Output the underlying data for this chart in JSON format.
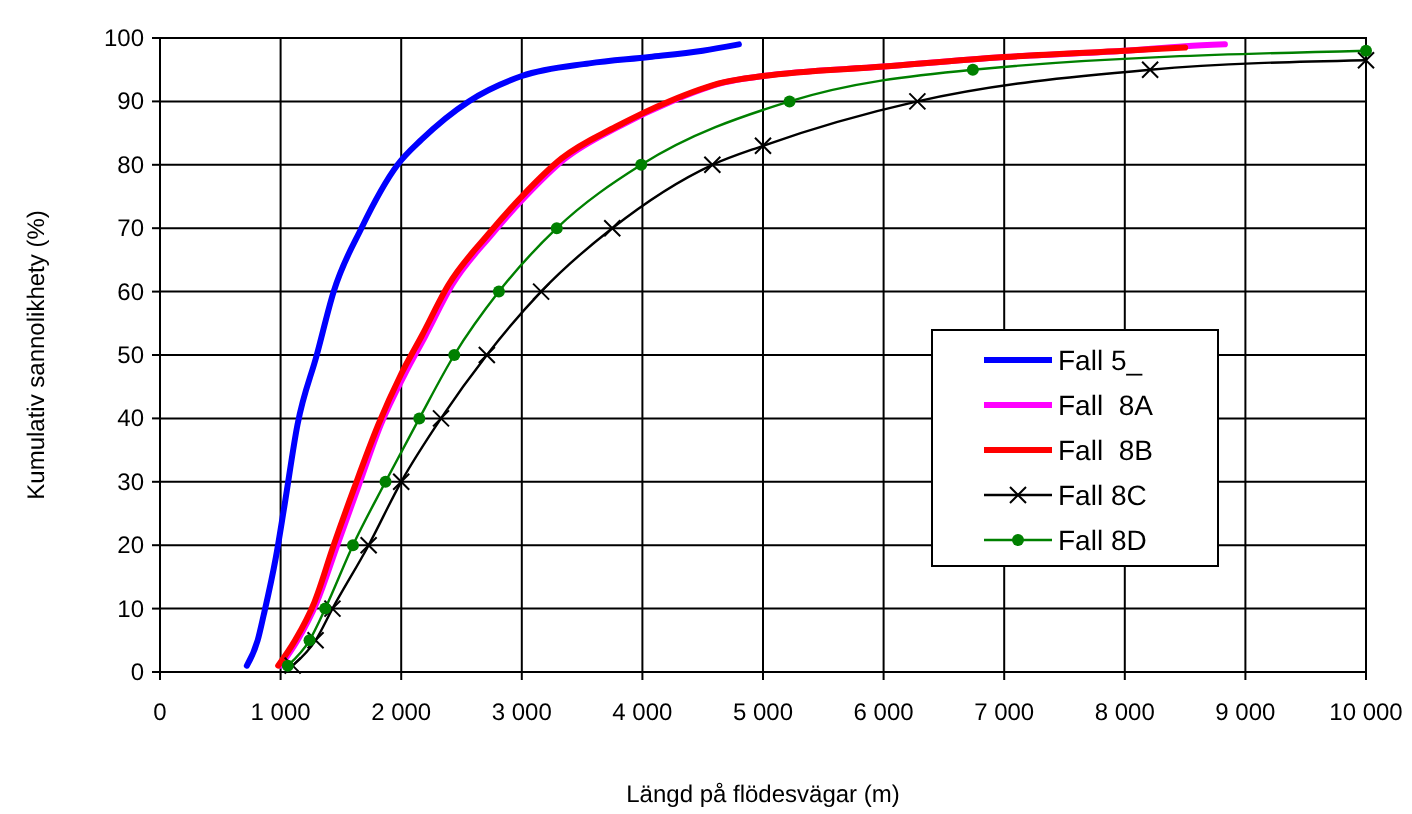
{
  "chart_data": {
    "type": "line",
    "xlabel": "Längd på flödesvägar (m)",
    "ylabel": "Kumulativ sannolikhety (%)",
    "xlim": [
      0,
      10000
    ],
    "ylim": [
      0,
      100
    ],
    "xticks": [
      0,
      {
        "value": 1000,
        "label": "1 000"
      },
      {
        "value": 2000,
        "label": "2 000"
      },
      {
        "value": 3000,
        "label": "3 000"
      },
      {
        "value": 4000,
        "label": "4 000"
      },
      {
        "value": 5000,
        "label": "5 000"
      },
      {
        "value": 6000,
        "label": "6 000"
      },
      {
        "value": 7000,
        "label": "7 000"
      },
      {
        "value": 8000,
        "label": "8 000"
      },
      {
        "value": 9000,
        "label": "9 000"
      },
      {
        "value": 10000,
        "label": "10 000"
      }
    ],
    "yticks": [
      0,
      10,
      20,
      30,
      40,
      50,
      60,
      70,
      80,
      90,
      100
    ],
    "grid": true,
    "legend": "right",
    "marker": "none",
    "line_style": "solid",
    "series": [
      {
        "name": "Fall 5_",
        "color": "#0000ff",
        "x": [
          720,
          810,
          860,
          960,
          1030,
          1140,
          1300,
          1440,
          1670,
          1970,
          2170,
          2560,
          3000,
          3560,
          4060,
          4500,
          4800
        ],
        "values": [
          1,
          5,
          9,
          18,
          26,
          39,
          50,
          60,
          70,
          80,
          84,
          90,
          94,
          96,
          97,
          98,
          99
        ]
      },
      {
        "name": "Fall  8A",
        "color": "#ff00ff",
        "x": [
          1000,
          1140,
          1300,
          1470,
          1640,
          1830,
          2030,
          2200,
          2420,
          2750,
          3030,
          3360,
          3800,
          4240,
          4680,
          5000,
          6000,
          7000,
          8000,
          8500,
          8830
        ],
        "values": [
          1,
          5,
          11,
          20,
          29,
          39,
          47,
          53,
          61,
          69,
          75,
          81,
          86,
          90,
          93,
          94,
          95.5,
          97,
          98,
          98.7,
          99
        ]
      },
      {
        "name": "Fall  8B",
        "color": "#ff0000",
        "x": [
          980,
          1120,
          1280,
          1440,
          1610,
          1810,
          2000,
          2170,
          2390,
          2720,
          3000,
          3330,
          3780,
          4220,
          4670,
          5000,
          6000,
          7000,
          8000,
          8500
        ],
        "values": [
          1,
          5,
          11,
          20,
          29,
          39,
          47,
          53,
          61,
          69,
          75,
          81,
          86,
          90,
          93,
          94,
          95.5,
          97,
          98,
          98.5
        ]
      },
      {
        "name": "Fall 8C",
        "color": "#000000",
        "marker": "cross",
        "x": [
          1100,
          1290,
          1430,
          1730,
          2000,
          2330,
          2710,
          3160,
          3750,
          4580,
          5000,
          6280,
          8210,
          10000
        ],
        "values": [
          1,
          5,
          10,
          20,
          30,
          40,
          50,
          60,
          70,
          80,
          83,
          90,
          95,
          96.5
        ]
      },
      {
        "name": "Fall 8D",
        "color": "#008000",
        "marker": "circle",
        "x": [
          1060,
          1240,
          1370,
          1600,
          1870,
          2150,
          2440,
          2810,
          3290,
          3990,
          5220,
          6740,
          10000
        ],
        "values": [
          1,
          5,
          10,
          20,
          30,
          40,
          50,
          60,
          70,
          80,
          90,
          95,
          98
        ]
      }
    ]
  }
}
